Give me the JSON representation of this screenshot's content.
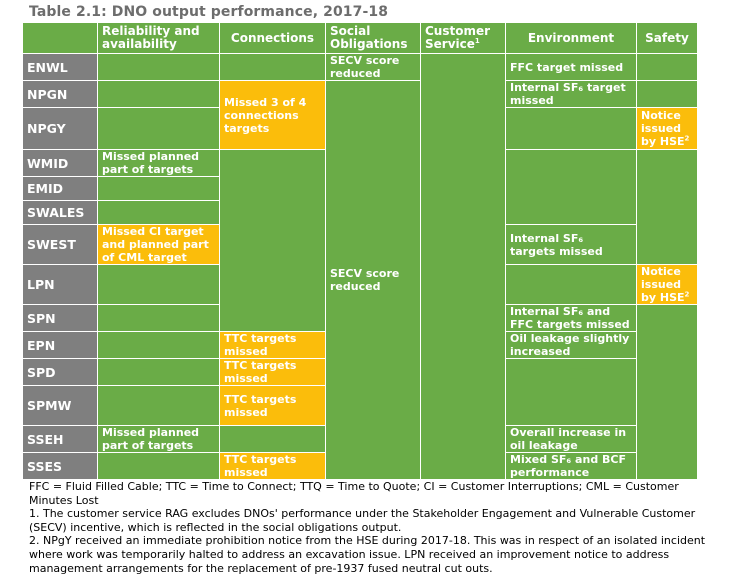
{
  "title": "Table 2.1: DNO output performance, 2017-18",
  "table": {
    "headers": {
      "reliability": "Reliability and availability",
      "connections": "Connections",
      "social": "Social Obligations",
      "customer": "Customer Service",
      "customer_sup": "1",
      "environment": "Environment",
      "safety": "Safety"
    },
    "rows": [
      "ENWL",
      "NPGN",
      "NPGY",
      "WMID",
      "EMID",
      "SWALES",
      "SWEST",
      "LPN",
      "SPN",
      "EPN",
      "SPD",
      "SPMW",
      "SSEH",
      "SSES"
    ],
    "cells": {
      "social_enwl": "SECV score reduced",
      "social_rest": "SECV score reduced",
      "env_enwl": "FFC target missed",
      "env_npgn": "Internal SF₆ target missed",
      "env_swest": "Internal SF₆ targets missed",
      "env_spn": "Internal SF₆ and FFC targets missed",
      "env_epn": "Oil leakage slightly increased",
      "env_sseh": "Overall increase in oil leakage",
      "env_sses": "Mixed SF₆ and BCF performance",
      "conn_npg": "Missed 3 of 4 connections targets",
      "conn_epn": "TTC targets missed",
      "conn_spd": "TTC targets missed",
      "conn_spmw": "TTC targets missed",
      "conn_sses": "TTC targets missed",
      "rel_wmid": "Missed planned part of targets",
      "rel_swest": "Missed CI target and planned part of CML target",
      "rel_sseh": "Missed planned part of targets",
      "safety_npgy": "Notice issued by HSE",
      "safety_lpn": "Notice issued by HSE",
      "safety_sup": "2"
    }
  },
  "notes": {
    "abbreviations": "FFC = Fluid Filled Cable; TTC = Time to Connect; TTQ = Time to Quote; CI = Customer Interruptions; CML = Customer Minutes Lost",
    "note1": "1. The customer service RAG excludes DNOs' performance under the Stakeholder Engagement and Vulnerable Customer (SECV) incentive, which is reflected in the social obligations output.",
    "note2": "2. NPgY received an immediate prohibition notice from the HSE during 2017-18. This was in respect of an isolated incident where work was temporarily halted to address an excavation issue. LPN received an improvement notice to address management arrangements for the replacement of pre-1937 fused neutral cut outs."
  },
  "colors": {
    "green": "#6aac47",
    "amber": "#fbbd0b",
    "grey": "#7f7f7f",
    "title_grey": "#6d6d6d"
  }
}
